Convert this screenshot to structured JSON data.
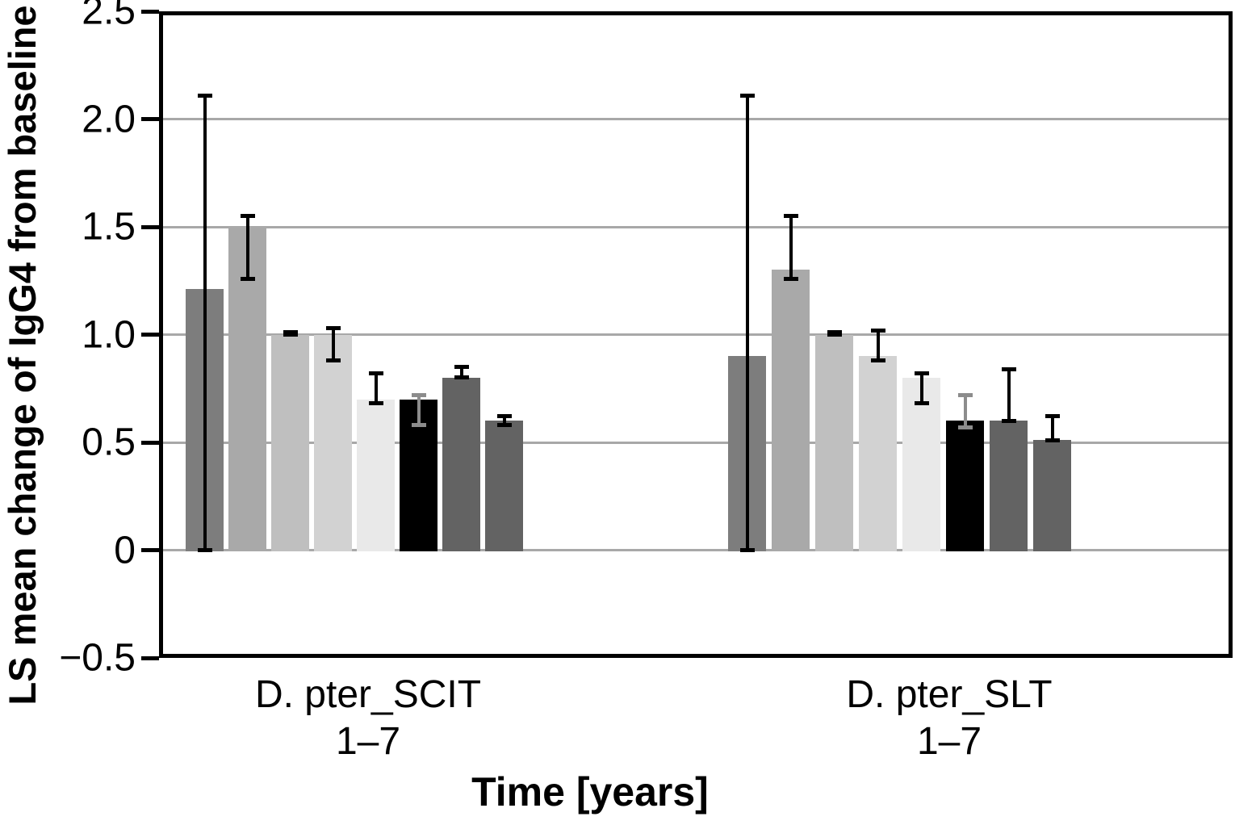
{
  "chart_data": {
    "type": "bar",
    "title": "",
    "xlabel": "Time [years]",
    "ylabel": "LS mean change of IgG4 from baseline",
    "ylim": [
      -0.5,
      2.5
    ],
    "yticks": [
      2.5,
      2.0,
      1.5,
      1.0,
      0.5,
      0,
      -0.5
    ],
    "ytick_labels": [
      "2.5",
      "2.0",
      "1.5",
      "1.0",
      "0.5",
      "0",
      "−0.5"
    ],
    "grid_values": [
      2.0,
      1.5,
      1.0,
      0.5,
      0
    ],
    "grid_on": true,
    "grid_color": "#a8a8a8",
    "axis_color": "#000000",
    "legend_position": "none",
    "bars_per_group": 8,
    "bar_colors": [
      "#7d7d7d",
      "#a9a9a9",
      "#bfbfbf",
      "#d2d2d2",
      "#e9e9e9",
      "#000000",
      "#636363",
      "#636363"
    ],
    "error_bar_colors": [
      "#000000",
      "#000000",
      "#000000",
      "#000000",
      "#000000",
      "#8c8c8c",
      "#000000",
      "#000000"
    ],
    "groups": [
      {
        "label_line1": "D. pter_SCIT",
        "label_line2": "1–7",
        "bars": [
          {
            "value": 1.21,
            "err_low": 0.0,
            "err_high": 2.11
          },
          {
            "value": 1.5,
            "err_low": 1.26,
            "err_high": 1.55
          },
          {
            "value": 1.0,
            "err_low": 1.0,
            "err_high": 1.01
          },
          {
            "value": 1.0,
            "err_low": 0.88,
            "err_high": 1.03
          },
          {
            "value": 0.7,
            "err_low": 0.68,
            "err_high": 0.82
          },
          {
            "value": 0.7,
            "err_low": 0.58,
            "err_high": 0.72
          },
          {
            "value": 0.8,
            "err_low": 0.8,
            "err_high": 0.85
          },
          {
            "value": 0.6,
            "err_low": 0.58,
            "err_high": 0.62
          }
        ]
      },
      {
        "label_line1": "D. pter_SLT",
        "label_line2": "1–7",
        "bars": [
          {
            "value": 0.9,
            "err_low": 0.0,
            "err_high": 2.11
          },
          {
            "value": 1.3,
            "err_low": 1.26,
            "err_high": 1.55
          },
          {
            "value": 1.0,
            "err_low": 1.0,
            "err_high": 1.01
          },
          {
            "value": 0.9,
            "err_low": 0.88,
            "err_high": 1.02
          },
          {
            "value": 0.8,
            "err_low": 0.68,
            "err_high": 0.82
          },
          {
            "value": 0.6,
            "err_low": 0.57,
            "err_high": 0.72
          },
          {
            "value": 0.6,
            "err_low": 0.6,
            "err_high": 0.84
          },
          {
            "value": 0.51,
            "err_low": 0.51,
            "err_high": 0.62
          }
        ]
      }
    ]
  }
}
